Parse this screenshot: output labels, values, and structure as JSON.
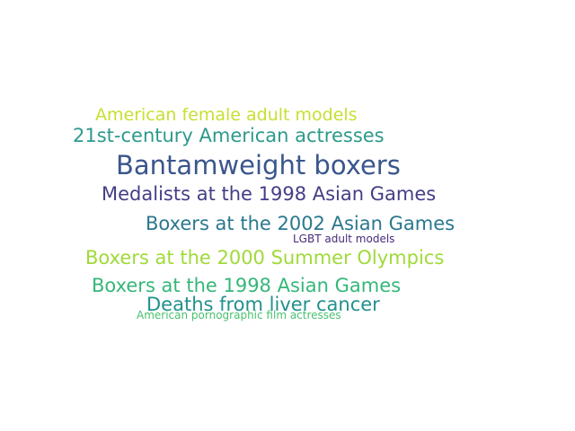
{
  "words": [
    {
      "text": "American female adult models",
      "color": "#c8df31"
    },
    {
      "text": "21st-century American actresses",
      "color": "#2d9a8a"
    },
    {
      "text": "Bantamweight boxers",
      "color": "#3a568c"
    },
    {
      "text": "Medalists at the 1998 Asian Games",
      "color": "#433e85"
    },
    {
      "text": "Boxers at the 2002 Asian Games",
      "color": "#2a788e"
    },
    {
      "text": "LGBT adult models",
      "color": "#472c7a"
    },
    {
      "text": "Boxers at the 2000 Summer Olympics",
      "color": "#a0da39"
    },
    {
      "text": "Boxers at the 1998 Asian Games",
      "color": "#35b779"
    },
    {
      "text": "Deaths from liver cancer",
      "color": "#21918c"
    },
    {
      "text": "American pornographic film actresses",
      "color": "#48c16e"
    }
  ]
}
